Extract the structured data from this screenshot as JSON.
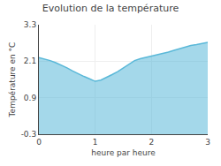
{
  "chart_data": {
    "type": "area",
    "title": "Evolution de la température",
    "xlabel": "heure par heure",
    "ylabel": "Température en °C",
    "x": [
      0,
      0.1,
      0.2,
      0.3,
      0.4,
      0.5,
      0.6,
      0.7,
      0.8,
      0.9,
      1.0,
      1.1,
      1.2,
      1.3,
      1.4,
      1.5,
      1.6,
      1.7,
      1.8,
      1.9,
      2.0,
      2.1,
      2.2,
      2.3,
      2.4,
      2.5,
      2.6,
      2.7,
      2.8,
      2.9,
      3.0
    ],
    "values": [
      2.22,
      2.18,
      2.12,
      2.05,
      1.97,
      1.88,
      1.78,
      1.68,
      1.6,
      1.52,
      1.44,
      1.48,
      1.56,
      1.66,
      1.76,
      1.88,
      2.0,
      2.12,
      2.18,
      2.22,
      2.26,
      2.3,
      2.35,
      2.4,
      2.46,
      2.52,
      2.57,
      2.62,
      2.65,
      2.68,
      2.72
    ],
    "color": "#5ab8d8",
    "xlim": [
      0,
      3
    ],
    "ylim": [
      -0.3,
      3.3
    ],
    "xticks": [
      0,
      1,
      2,
      3
    ],
    "yticks": [
      -0.3,
      0.9,
      2.1,
      3.3
    ],
    "grid": true
  }
}
